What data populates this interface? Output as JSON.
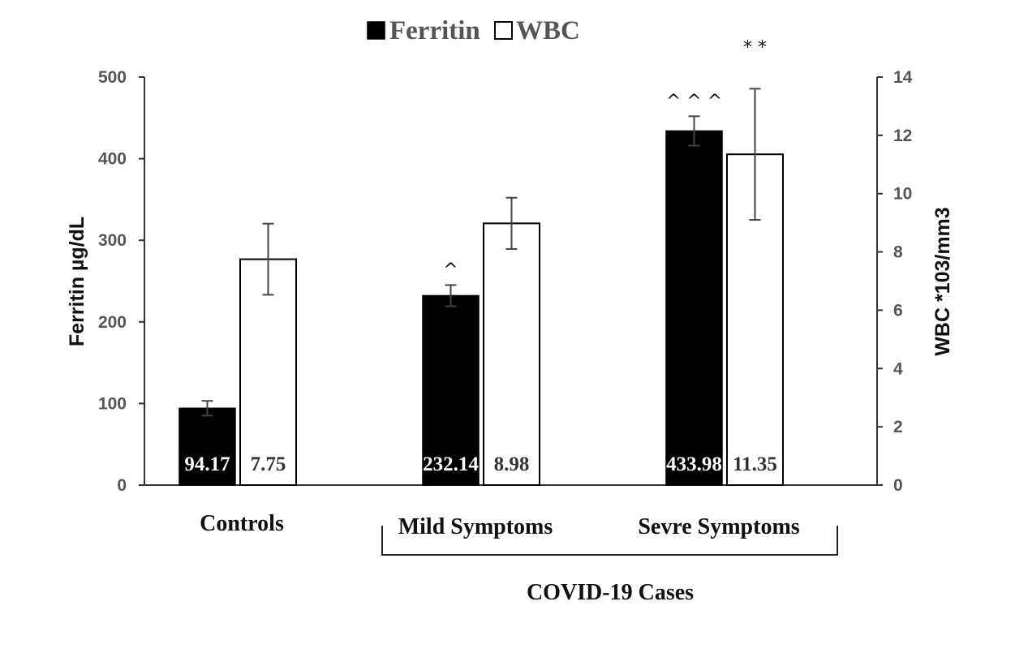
{
  "chart_data": {
    "type": "bar",
    "categories": [
      "Controls",
      "Mild Symptoms",
      "Sevre Symptoms"
    ],
    "group_label": "COVID-19 Cases",
    "legend": [
      "Ferritin",
      "WBC"
    ],
    "series": [
      {
        "name": "Ferritin",
        "axis": "left",
        "color": "#000000",
        "values": [
          94.17,
          232.14,
          433.98
        ],
        "errors": [
          9,
          13,
          18
        ],
        "labels": [
          "94.17",
          "232.14",
          "433.98"
        ],
        "annotations": [
          "",
          "^",
          "^ ^ ^"
        ]
      },
      {
        "name": "WBC",
        "axis": "right",
        "color": "#ffffff",
        "values": [
          7.75,
          8.98,
          11.35
        ],
        "errors": [
          1.22,
          0.88,
          2.25
        ],
        "labels": [
          "7.75",
          "8.98",
          "11.35"
        ],
        "annotations": [
          "",
          "",
          "* *"
        ]
      }
    ],
    "ylabel_left": "Ferritin µg/dL",
    "ylabel_right": "WBC *103/mm3",
    "ylim_left": [
      0,
      500
    ],
    "ylim_right": [
      0,
      14
    ],
    "yticks_left": [
      "0",
      "100",
      "200",
      "300",
      "400",
      "500"
    ],
    "yticks_right": [
      "0",
      "2",
      "4",
      "6",
      "8",
      "10",
      "12",
      "14"
    ],
    "grid": false,
    "legend_position": "top-center"
  }
}
